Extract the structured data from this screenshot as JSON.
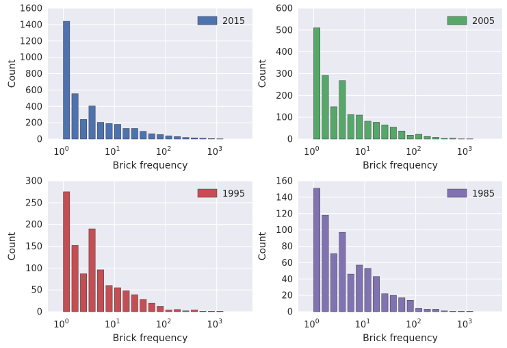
{
  "chart_data": [
    {
      "type": "bar",
      "legend": "2015",
      "color": "#4c72b0",
      "xlabel": "Brick frequency",
      "ylabel": "Count",
      "xscale": "log",
      "xlim": [
        0.5,
        5000
      ],
      "ylim": [
        0,
        1600
      ],
      "yticks": [
        "0",
        "200",
        "400",
        "600",
        "800",
        "1000",
        "1200",
        "1400",
        "1600"
      ],
      "xticks": [
        {
          "base": "10",
          "exp": "0"
        },
        {
          "base": "10",
          "exp": "1"
        },
        {
          "base": "10",
          "exp": "2"
        },
        {
          "base": "10",
          "exp": "3"
        }
      ],
      "values": [
        1440,
        555,
        240,
        405,
        205,
        190,
        180,
        130,
        130,
        95,
        65,
        55,
        40,
        30,
        20,
        15,
        10,
        5,
        3
      ],
      "legend_position": "upper right",
      "grid": true
    },
    {
      "type": "bar",
      "legend": "2005",
      "color": "#55a868",
      "xlabel": "Brick frequency",
      "ylabel": "Count",
      "xscale": "log",
      "xlim": [
        0.5,
        5000
      ],
      "ylim": [
        0,
        600
      ],
      "yticks": [
        "0",
        "100",
        "200",
        "300",
        "400",
        "500",
        "600"
      ],
      "xticks": [
        {
          "base": "10",
          "exp": "0"
        },
        {
          "base": "10",
          "exp": "1"
        },
        {
          "base": "10",
          "exp": "2"
        },
        {
          "base": "10",
          "exp": "3"
        }
      ],
      "values": [
        510,
        292,
        148,
        268,
        112,
        110,
        82,
        77,
        65,
        55,
        37,
        18,
        22,
        12,
        8,
        3,
        4,
        1,
        1
      ],
      "legend_position": "upper right",
      "grid": true
    },
    {
      "type": "bar",
      "legend": "1995",
      "color": "#c44e52",
      "xlabel": "Brick frequency",
      "ylabel": "Count",
      "xscale": "log",
      "xlim": [
        0.5,
        5000
      ],
      "ylim": [
        0,
        300
      ],
      "yticks": [
        "0",
        "50",
        "100",
        "150",
        "200",
        "250",
        "300"
      ],
      "xticks": [
        {
          "base": "10",
          "exp": "0"
        },
        {
          "base": "10",
          "exp": "1"
        },
        {
          "base": "10",
          "exp": "2"
        },
        {
          "base": "10",
          "exp": "3"
        }
      ],
      "values": [
        275,
        152,
        87,
        190,
        96,
        60,
        55,
        48,
        39,
        28,
        20,
        12,
        4,
        5,
        2,
        4,
        1,
        1,
        1
      ],
      "legend_position": "upper right",
      "grid": true
    },
    {
      "type": "bar",
      "legend": "1985",
      "color": "#8172b2",
      "xlabel": "Brick frequency",
      "ylabel": "Count",
      "xscale": "log",
      "xlim": [
        0.5,
        5000
      ],
      "ylim": [
        0,
        160
      ],
      "yticks": [
        "0",
        "20",
        "40",
        "60",
        "80",
        "100",
        "120",
        "140",
        "160"
      ],
      "xticks": [
        {
          "base": "10",
          "exp": "0"
        },
        {
          "base": "10",
          "exp": "1"
        },
        {
          "base": "10",
          "exp": "2"
        },
        {
          "base": "10",
          "exp": "3"
        }
      ],
      "values": [
        151,
        118,
        71,
        97,
        46,
        57,
        53,
        43,
        22,
        20,
        17,
        14,
        4,
        3,
        3,
        1,
        0.5,
        0.5,
        0.5
      ],
      "legend_position": "upper right",
      "grid": true
    }
  ]
}
